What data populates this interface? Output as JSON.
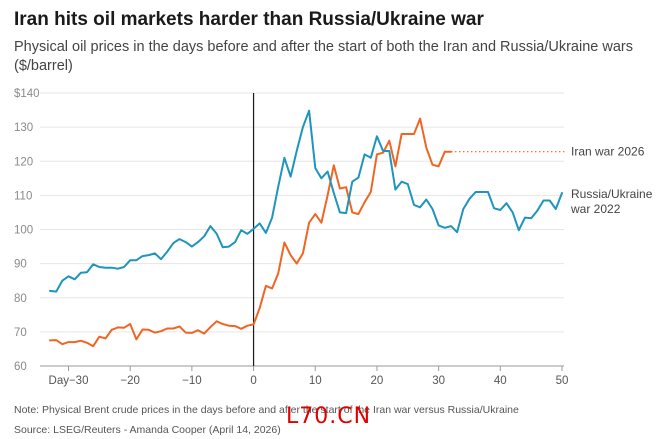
{
  "title": "Iran hits oil markets harder than Russia/Ukraine war",
  "subtitle": "Physical oil prices in the days before and after the start of both the Iran and Russia/Ukraine wars ($/barrel)",
  "note": "Note: Physical Brent crude prices in the days before and after the start of the Iran war versus Russia/Ukraine",
  "source": "Source: LSEG/Reuters - Amanda Cooper (April 14, 2026)",
  "watermark": "L70.CN",
  "colors": {
    "iran": "#f06524",
    "russia": "#1f94bd",
    "axis": "#1a1a1a",
    "grid": "#e6e6e6"
  },
  "chart_data": {
    "type": "line",
    "title": "Iran hits oil markets harder than Russia/Ukraine war",
    "ylabel": "$/barrel",
    "xlim": [
      -33,
      50
    ],
    "ylim": [
      60,
      140
    ],
    "y_ticks": [
      60,
      70,
      80,
      90,
      100,
      110,
      120,
      130,
      140
    ],
    "y_tick_labels": [
      "60",
      "70",
      "80",
      "90",
      "100",
      "110",
      "120",
      "130",
      "$140"
    ],
    "x_ticks": [
      -30,
      -20,
      -10,
      0,
      10,
      20,
      30,
      40,
      50
    ],
    "x_tick_labels": [
      "Day−30",
      "−20",
      "−10",
      "0",
      "10",
      "20",
      "30",
      "40",
      "50"
    ],
    "grid": true,
    "vertical_marker_x": 0,
    "series": [
      {
        "name": "Iran war 2026",
        "color": "#f06524",
        "x": [
          -33,
          -32,
          -31,
          -30,
          -29,
          -28,
          -27,
          -26,
          -25,
          -24,
          -23,
          -22,
          -21,
          -20,
          -19,
          -18,
          -17,
          -16,
          -15,
          -14,
          -13,
          -12,
          -11,
          -10,
          -9,
          -8,
          -7,
          -6,
          -5,
          -4,
          -3,
          -2,
          -1,
          0,
          1,
          2,
          3,
          4,
          5,
          6,
          7,
          8,
          9,
          10,
          11,
          12,
          13,
          14,
          15,
          16,
          17,
          18,
          19,
          20,
          21,
          22,
          23,
          24,
          25,
          26,
          27,
          28,
          29,
          30,
          31,
          32
        ],
        "y": [
          67.5,
          67.6,
          66.4,
          67.0,
          67.0,
          67.4,
          66.8,
          65.8,
          68.6,
          68.1,
          70.6,
          71.3,
          71.2,
          72.3,
          67.8,
          70.7,
          70.6,
          69.8,
          70.2,
          71.0,
          71.0,
          71.6,
          69.8,
          69.7,
          70.5,
          69.5,
          71.4,
          73.1,
          72.3,
          71.8,
          71.7,
          70.9,
          71.8,
          72.2,
          77.0,
          83.5,
          82.7,
          87.1,
          96.2,
          92.5,
          90.0,
          93.0,
          102.0,
          104.5,
          102.0,
          110.0,
          118.8,
          112.0,
          112.4,
          105.0,
          104.5,
          108.0,
          111.0,
          122.0,
          122.5,
          126.0,
          118.5,
          128.0,
          128.0,
          128.0,
          132.5,
          124.0,
          119.0,
          118.5,
          122.8,
          122.8
        ]
      },
      {
        "name": "Russia/Ukraine war 2022",
        "color": "#1f94bd",
        "x": [
          -33,
          -32,
          -31,
          -30,
          -29,
          -28,
          -27,
          -26,
          -25,
          -24,
          -23,
          -22,
          -21,
          -20,
          -19,
          -18,
          -17,
          -16,
          -15,
          -14,
          -13,
          -12,
          -11,
          -10,
          -9,
          -8,
          -7,
          -6,
          -5,
          -4,
          -3,
          -2,
          -1,
          0,
          1,
          2,
          3,
          4,
          5,
          6,
          7,
          8,
          9,
          10,
          11,
          12,
          13,
          14,
          15,
          16,
          17,
          18,
          19,
          20,
          21,
          22,
          23,
          24,
          25,
          26,
          27,
          28,
          29,
          30,
          31,
          32,
          33,
          34,
          35,
          36,
          37,
          38,
          39,
          40,
          41,
          42,
          43,
          44,
          45,
          46,
          47,
          48,
          49,
          50
        ],
        "y": [
          82.0,
          81.8,
          85.0,
          86.3,
          85.4,
          87.3,
          87.5,
          89.8,
          89.0,
          88.8,
          88.8,
          88.5,
          89.0,
          91.0,
          91.0,
          92.2,
          92.5,
          93.0,
          91.3,
          93.5,
          96.0,
          97.2,
          96.3,
          95.0,
          96.3,
          98.0,
          101.0,
          98.8,
          94.8,
          95.0,
          96.3,
          99.8,
          98.7,
          100.2,
          101.8,
          99.0,
          103.5,
          112.5,
          121.0,
          115.5,
          123.0,
          130.0,
          134.8,
          118.0,
          115.0,
          117.0,
          110.7,
          105.0,
          104.8,
          114.0,
          115.2,
          122.0,
          121.0,
          127.3,
          123.0,
          123.0,
          111.7,
          114.0,
          113.3,
          107.2,
          106.5,
          108.8,
          106.0,
          101.2,
          100.5,
          101.0,
          99.2,
          106.0,
          109.0,
          111.0,
          111.0,
          111.0,
          106.2,
          105.7,
          107.7,
          105.0,
          99.8,
          103.5,
          103.3,
          105.5,
          108.5,
          108.5,
          106.0,
          110.7
        ]
      }
    ]
  }
}
